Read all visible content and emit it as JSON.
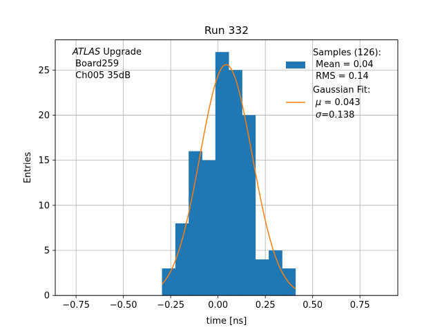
{
  "chart_data": {
    "type": "bar",
    "title": "Run 332",
    "xlabel": "time [ns]",
    "ylabel": "Entries",
    "xlim": [
      -0.86,
      0.95
    ],
    "ylim": [
      0,
      28.35
    ],
    "grid": true,
    "xticks": [
      -0.75,
      -0.5,
      -0.25,
      0.0,
      0.25,
      0.5,
      0.75
    ],
    "xtick_labels": [
      "−0.75",
      "−0.50",
      "−0.25",
      "0.00",
      "0.25",
      "0.50",
      "0.75"
    ],
    "yticks": [
      0,
      5,
      10,
      15,
      20,
      25
    ],
    "ytick_labels": [
      "0",
      "5",
      "10",
      "15",
      "20",
      "25"
    ],
    "histogram": {
      "name": "Samples",
      "color": "#1f77b4",
      "bin_edges": [
        -0.296,
        -0.2255,
        -0.155,
        -0.0845,
        -0.014,
        0.0565,
        0.127,
        0.1975,
        0.268,
        0.3385,
        0.409
      ],
      "counts": [
        3,
        8,
        16,
        15,
        27,
        25,
        20,
        4,
        5,
        3
      ]
    },
    "fit": {
      "name": "Gaussian Fit",
      "color": "#ff7f0e",
      "amplitude": 25.6,
      "mu": 0.043,
      "sigma": 0.138,
      "x_range": [
        -0.296,
        0.409
      ]
    },
    "annotation": {
      "italic": "ATLAS",
      "rest": " Upgrade",
      "line2": " Board259",
      "line3": " Ch005 35dB"
    },
    "legend": {
      "placement": "top-right",
      "samples_title": "Samples (126):",
      "samples_mean": " Mean = 0.04",
      "samples_rms": " RMS = 0.14",
      "fit_title": "Gaussian Fit:",
      "fit_mu_symbol": "μ",
      "fit_mu_rest": " = 0.043",
      "fit_sigma_symbol": "σ",
      "fit_sigma_rest": "=0.138"
    }
  }
}
